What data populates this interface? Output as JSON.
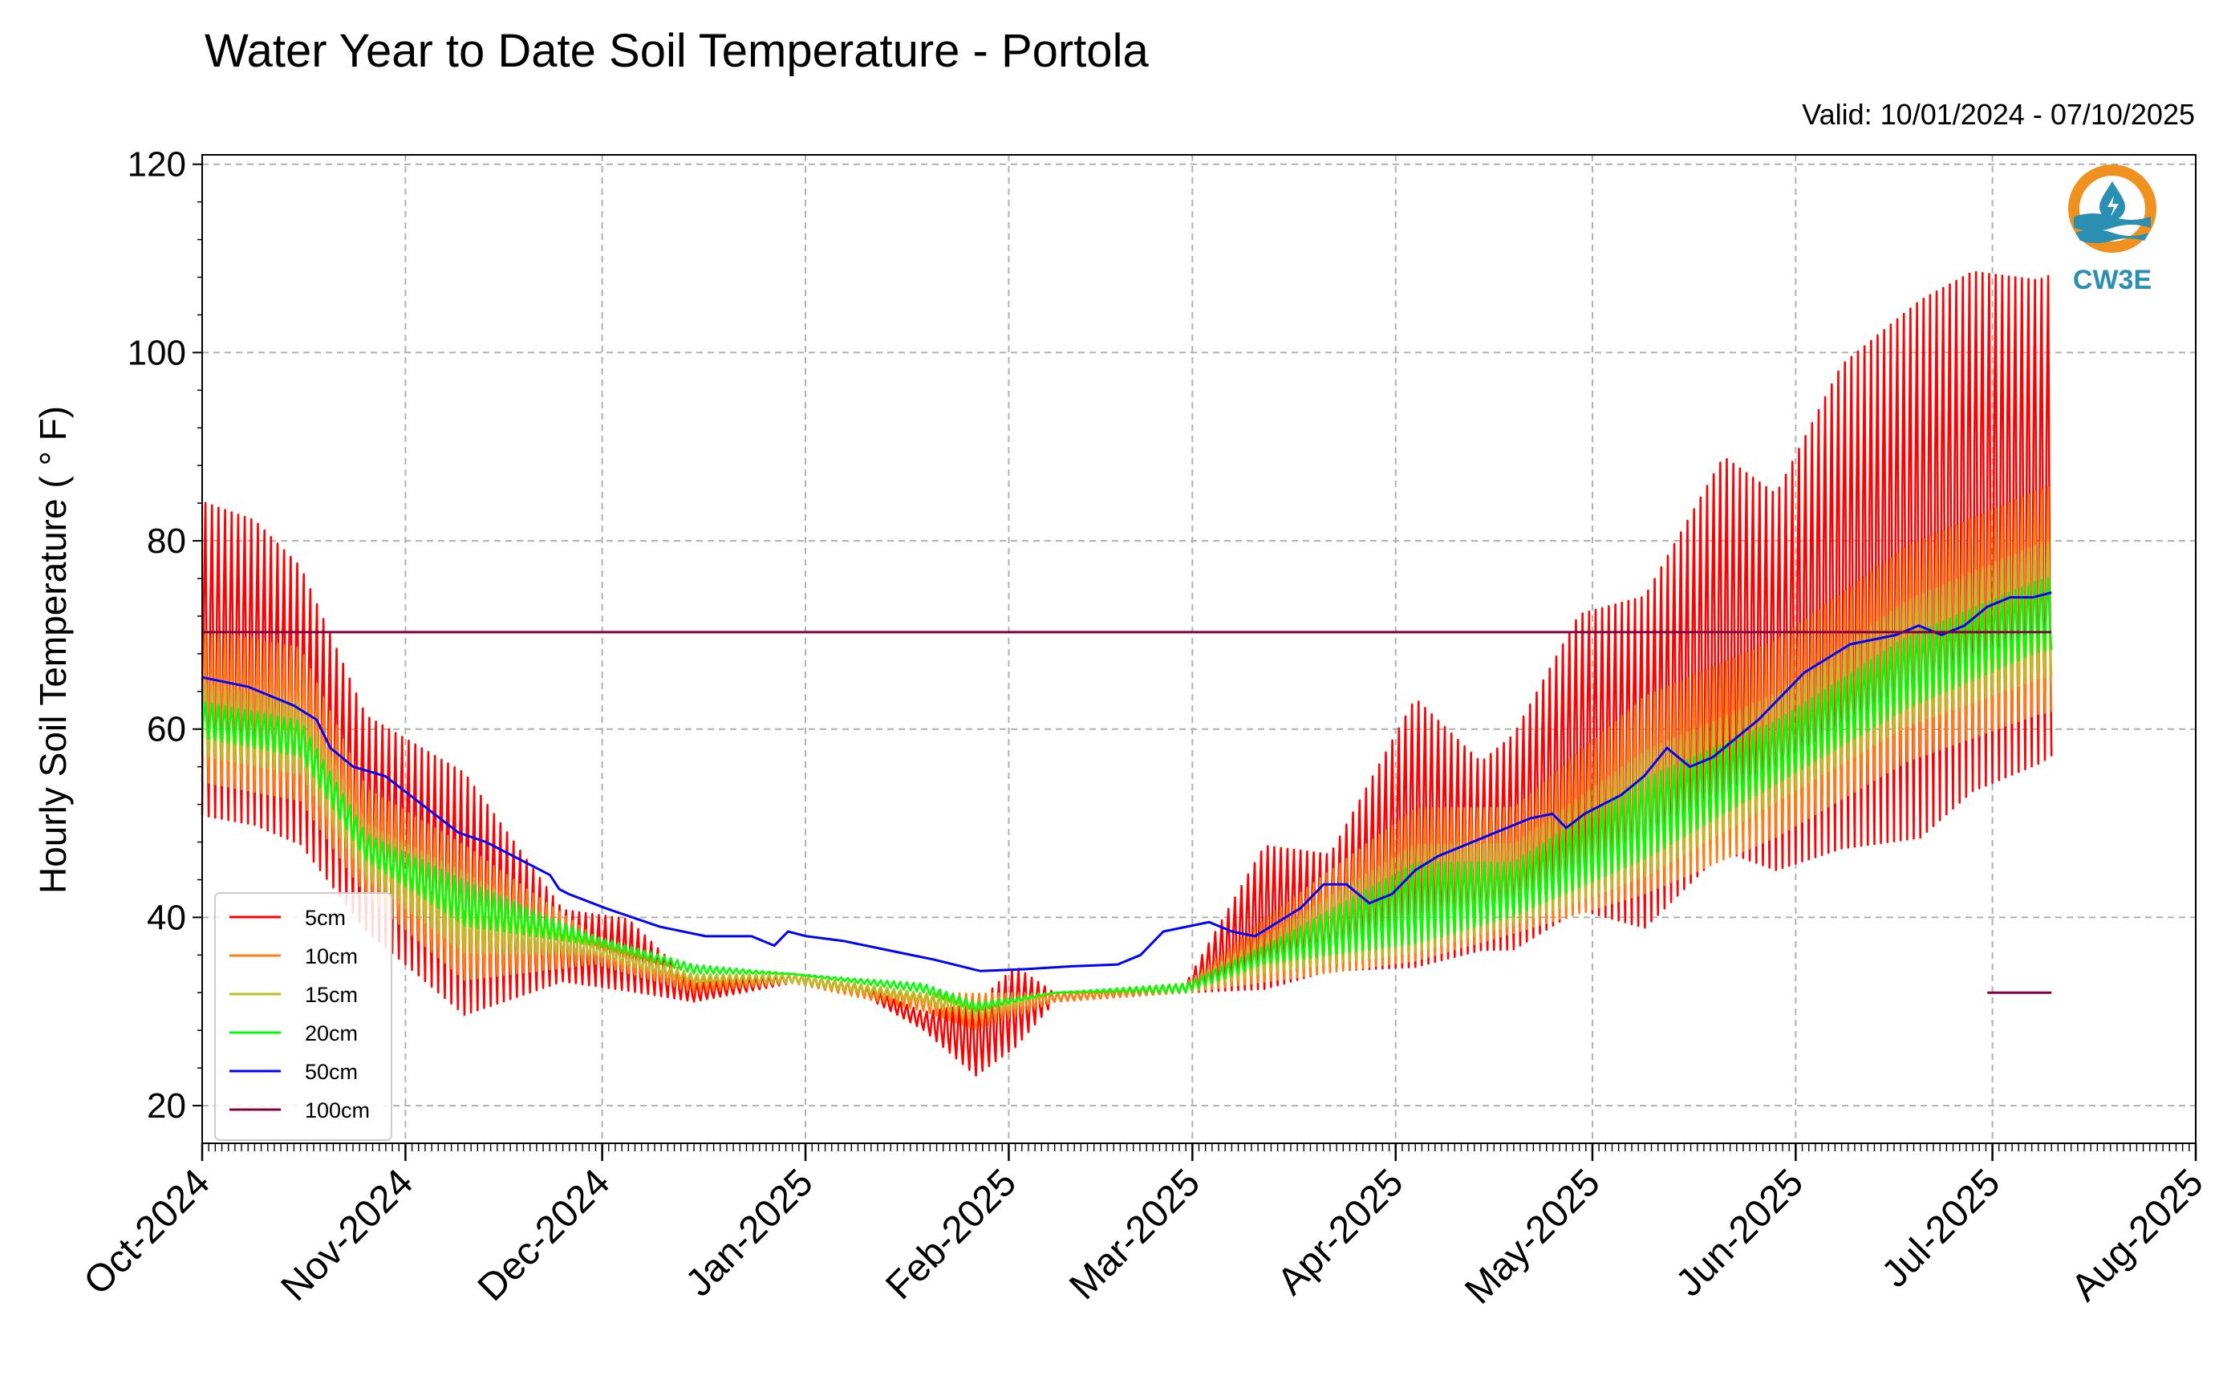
{
  "header": {
    "title": "Water Year to Date Soil Temperature - Portola",
    "valid": "Valid: 10/01/2024 - 07/10/2025"
  },
  "logo": {
    "text": "CW3E",
    "icon": "water-drop-icon",
    "ring_color": "#f0901e",
    "wave_color": "#2a8fb0"
  },
  "chart_data": {
    "type": "line",
    "title": "Water Year to Date Soil Temperature - Portola",
    "ylabel": "Hourly Soil Temperature ( ° F)",
    "xlabel": "",
    "ylim": [
      16,
      121
    ],
    "yticks": [
      20,
      40,
      60,
      80,
      100,
      120
    ],
    "xlim": [
      "2024-10-01",
      "2025-08-01"
    ],
    "xticks": [
      "Oct-2024",
      "Nov-2024",
      "Dec-2024",
      "Jan-2025",
      "Feb-2025",
      "Mar-2025",
      "Apr-2025",
      "May-2025",
      "Jun-2025",
      "Jul-2025",
      "Aug-2025"
    ],
    "grid": true,
    "legend_position": "lower-left",
    "series": [
      {
        "name": "5cm",
        "color": "#ff0000",
        "low": [
          [
            0,
            50
          ],
          [
            8,
            49
          ],
          [
            15,
            47
          ],
          [
            25,
            38
          ],
          [
            40,
            29
          ],
          [
            55,
            33
          ],
          [
            65,
            32
          ],
          [
            75,
            31
          ],
          [
            90,
            33
          ],
          [
            100,
            32
          ],
          [
            110,
            28
          ],
          [
            118,
            23
          ],
          [
            124,
            26
          ],
          [
            130,
            31
          ],
          [
            150,
            32
          ],
          [
            162,
            32
          ],
          [
            172,
            34
          ],
          [
            185,
            34
          ],
          [
            195,
            36
          ],
          [
            200,
            36
          ],
          [
            210,
            40
          ],
          [
            220,
            38
          ],
          [
            232,
            46
          ],
          [
            240,
            44
          ],
          [
            250,
            46
          ],
          [
            262,
            47
          ],
          [
            270,
            52
          ],
          [
            280,
            55
          ],
          [
            290,
            59
          ],
          [
            300,
            61
          ],
          [
            310,
            58
          ],
          [
            320,
            57
          ],
          [
            330,
            60
          ],
          [
            340,
            62
          ]
        ],
        "high": [
          [
            0,
            85
          ],
          [
            8,
            83
          ],
          [
            15,
            78
          ],
          [
            25,
            62
          ],
          [
            40,
            56
          ],
          [
            55,
            41
          ],
          [
            65,
            40
          ],
          [
            75,
            33
          ],
          [
            90,
            34
          ],
          [
            100,
            33
          ],
          [
            110,
            30
          ],
          [
            118,
            31
          ],
          [
            124,
            35
          ],
          [
            130,
            32
          ],
          [
            150,
            33
          ],
          [
            162,
            48
          ],
          [
            172,
            47
          ],
          [
            185,
            64
          ],
          [
            195,
            57
          ],
          [
            200,
            60
          ],
          [
            210,
            73
          ],
          [
            220,
            75
          ],
          [
            232,
            90
          ],
          [
            240,
            86
          ],
          [
            250,
            100
          ],
          [
            262,
            107
          ],
          [
            270,
            110
          ],
          [
            280,
            109
          ],
          [
            290,
            112
          ],
          [
            300,
            116
          ],
          [
            310,
            114
          ],
          [
            320,
            113
          ],
          [
            330,
            113
          ],
          [
            340,
            113
          ]
        ]
      },
      {
        "name": "10cm",
        "color": "#ff7f0e",
        "low": [
          [
            0,
            54
          ],
          [
            15,
            52
          ],
          [
            25,
            42
          ],
          [
            40,
            33
          ],
          [
            60,
            35
          ],
          [
            75,
            32
          ],
          [
            90,
            33
          ],
          [
            110,
            30
          ],
          [
            118,
            28
          ],
          [
            130,
            31
          ],
          [
            150,
            32
          ],
          [
            162,
            33
          ],
          [
            185,
            35
          ],
          [
            200,
            38
          ],
          [
            220,
            42
          ],
          [
            240,
            48
          ],
          [
            260,
            56
          ],
          [
            280,
            61
          ],
          [
            300,
            63
          ],
          [
            320,
            64
          ],
          [
            340,
            66
          ]
        ],
        "high": [
          [
            0,
            71
          ],
          [
            15,
            69
          ],
          [
            25,
            54
          ],
          [
            40,
            48
          ],
          [
            60,
            38
          ],
          [
            75,
            34
          ],
          [
            90,
            34
          ],
          [
            110,
            32
          ],
          [
            118,
            32
          ],
          [
            130,
            32
          ],
          [
            150,
            33
          ],
          [
            162,
            40
          ],
          [
            185,
            52
          ],
          [
            200,
            52
          ],
          [
            220,
            64
          ],
          [
            240,
            70
          ],
          [
            260,
            80
          ],
          [
            280,
            86
          ],
          [
            300,
            90
          ],
          [
            320,
            92
          ],
          [
            340,
            92
          ]
        ]
      },
      {
        "name": "15cm",
        "color": "#bcbd22",
        "low": [
          [
            0,
            57
          ],
          [
            15,
            55
          ],
          [
            25,
            44
          ],
          [
            40,
            36
          ],
          [
            60,
            36
          ],
          [
            75,
            33
          ],
          [
            90,
            33
          ],
          [
            110,
            31
          ],
          [
            118,
            29
          ],
          [
            130,
            32
          ],
          [
            150,
            32
          ],
          [
            162,
            34
          ],
          [
            185,
            36
          ],
          [
            200,
            39
          ],
          [
            220,
            44
          ],
          [
            240,
            52
          ],
          [
            260,
            60
          ],
          [
            280,
            65
          ],
          [
            300,
            67
          ],
          [
            320,
            68
          ],
          [
            340,
            70
          ]
        ],
        "high": [
          [
            0,
            65
          ],
          [
            15,
            63
          ],
          [
            25,
            50
          ],
          [
            40,
            45
          ],
          [
            60,
            37
          ],
          [
            75,
            34
          ],
          [
            90,
            34
          ],
          [
            110,
            32
          ],
          [
            118,
            31
          ],
          [
            130,
            32
          ],
          [
            150,
            33
          ],
          [
            162,
            38
          ],
          [
            185,
            48
          ],
          [
            200,
            48
          ],
          [
            220,
            58
          ],
          [
            240,
            64
          ],
          [
            260,
            74
          ],
          [
            280,
            80
          ],
          [
            300,
            82
          ],
          [
            320,
            84
          ],
          [
            340,
            86
          ]
        ]
      },
      {
        "name": "20cm",
        "color": "#00ff00",
        "low": [
          [
            0,
            59
          ],
          [
            15,
            57
          ],
          [
            25,
            46
          ],
          [
            40,
            39
          ],
          [
            60,
            37
          ],
          [
            75,
            34
          ],
          [
            90,
            34
          ],
          [
            110,
            32
          ],
          [
            118,
            30
          ],
          [
            130,
            32
          ],
          [
            150,
            32
          ],
          [
            162,
            35
          ],
          [
            185,
            37
          ],
          [
            200,
            40
          ],
          [
            220,
            46
          ],
          [
            240,
            54
          ],
          [
            260,
            62
          ],
          [
            280,
            68
          ],
          [
            300,
            70
          ],
          [
            320,
            71
          ],
          [
            340,
            74
          ]
        ],
        "high": [
          [
            0,
            63
          ],
          [
            15,
            61
          ],
          [
            25,
            49
          ],
          [
            40,
            44
          ],
          [
            60,
            38
          ],
          [
            75,
            35
          ],
          [
            90,
            34
          ],
          [
            110,
            33
          ],
          [
            118,
            31
          ],
          [
            130,
            32
          ],
          [
            150,
            33
          ],
          [
            162,
            37
          ],
          [
            185,
            46
          ],
          [
            200,
            46
          ],
          [
            220,
            55
          ],
          [
            240,
            61
          ],
          [
            260,
            70
          ],
          [
            280,
            76
          ],
          [
            300,
            79
          ],
          [
            320,
            80
          ],
          [
            340,
            82
          ]
        ]
      },
      {
        "name": "50cm",
        "color": "#0000ff",
        "points": [
          [
            0,
            65.5
          ],
          [
            10,
            64.5
          ],
          [
            20,
            62.5
          ],
          [
            25,
            61
          ],
          [
            28,
            58
          ],
          [
            33,
            56
          ],
          [
            40,
            55
          ],
          [
            48,
            52
          ],
          [
            56,
            49
          ],
          [
            62,
            48
          ],
          [
            70,
            46
          ],
          [
            76,
            44.5
          ],
          [
            78,
            43
          ],
          [
            80,
            42.5
          ],
          [
            88,
            41
          ],
          [
            100,
            39
          ],
          [
            110,
            38
          ],
          [
            120,
            38
          ],
          [
            125,
            37
          ],
          [
            128,
            38.5
          ],
          [
            132,
            38
          ],
          [
            140,
            37.5
          ],
          [
            150,
            36.5
          ],
          [
            160,
            35.5
          ],
          [
            170,
            34.3
          ],
          [
            180,
            34.5
          ],
          [
            190,
            34.8
          ],
          [
            200,
            35
          ],
          [
            205,
            36
          ],
          [
            210,
            38.5
          ],
          [
            215,
            39
          ],
          [
            220,
            39.5
          ],
          [
            225,
            38.5
          ],
          [
            230,
            38
          ],
          [
            235,
            39.5
          ],
          [
            240,
            41
          ],
          [
            245,
            43.5
          ],
          [
            250,
            43.5
          ],
          [
            255,
            41.5
          ],
          [
            260,
            42.5
          ],
          [
            265,
            45
          ],
          [
            270,
            46.5
          ],
          [
            280,
            48.5
          ],
          [
            290,
            50.5
          ],
          [
            295,
            51
          ],
          [
            298,
            49.5
          ],
          [
            302,
            51
          ],
          [
            310,
            53
          ],
          [
            315,
            55
          ],
          [
            320,
            58
          ],
          [
            325,
            56
          ],
          [
            330,
            57
          ],
          [
            340,
            61
          ],
          [
            350,
            66
          ],
          [
            360,
            69
          ],
          [
            370,
            70
          ],
          [
            375,
            71
          ],
          [
            380,
            70
          ],
          [
            385,
            71
          ],
          [
            390,
            73
          ],
          [
            395,
            74
          ],
          [
            400,
            74
          ],
          [
            404,
            74.5
          ]
        ]
      },
      {
        "name": "100cm",
        "color": "#800040",
        "segments": [
          [
            [
              0,
              70.3
            ],
            [
              404,
              70.3
            ]
          ],
          [
            [
              390,
              32
            ],
            [
              404,
              32
            ]
          ]
        ]
      }
    ]
  }
}
